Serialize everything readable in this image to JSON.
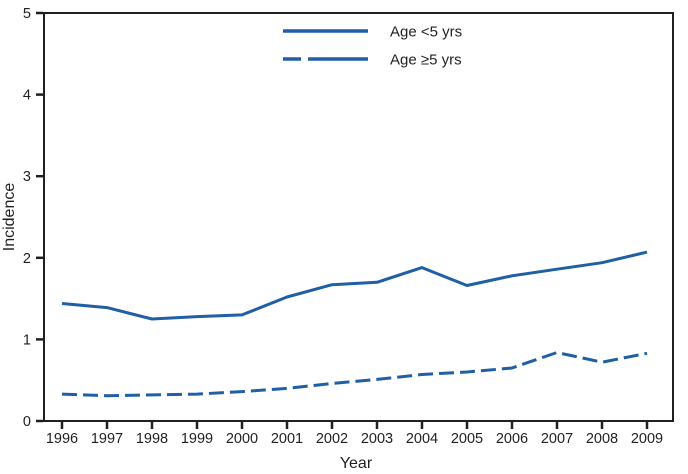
{
  "chart_data": {
    "type": "line",
    "title": "",
    "xlabel": "Year",
    "ylabel": "Incidence",
    "x": [
      1996,
      1997,
      1998,
      1999,
      2000,
      2001,
      2002,
      2003,
      2004,
      2005,
      2006,
      2007,
      2008,
      2009
    ],
    "ylim": [
      0,
      5
    ],
    "y_ticks": [
      0,
      1,
      2,
      3,
      4,
      5
    ],
    "series": [
      {
        "name": "Age <5 yrs",
        "style": "solid",
        "values": [
          1.44,
          1.39,
          1.25,
          1.28,
          1.3,
          1.52,
          1.67,
          1.7,
          1.88,
          1.66,
          1.78,
          1.86,
          1.94,
          2.07
        ]
      },
      {
        "name": "Age ≥5 yrs",
        "style": "dashed",
        "values": [
          0.33,
          0.31,
          0.32,
          0.33,
          0.36,
          0.4,
          0.46,
          0.51,
          0.57,
          0.6,
          0.65,
          0.84,
          0.72,
          0.83
        ]
      }
    ],
    "legend_position": "top-center",
    "grid": false,
    "line_color": "#1f5fa5",
    "axis_color": "#231f20"
  }
}
